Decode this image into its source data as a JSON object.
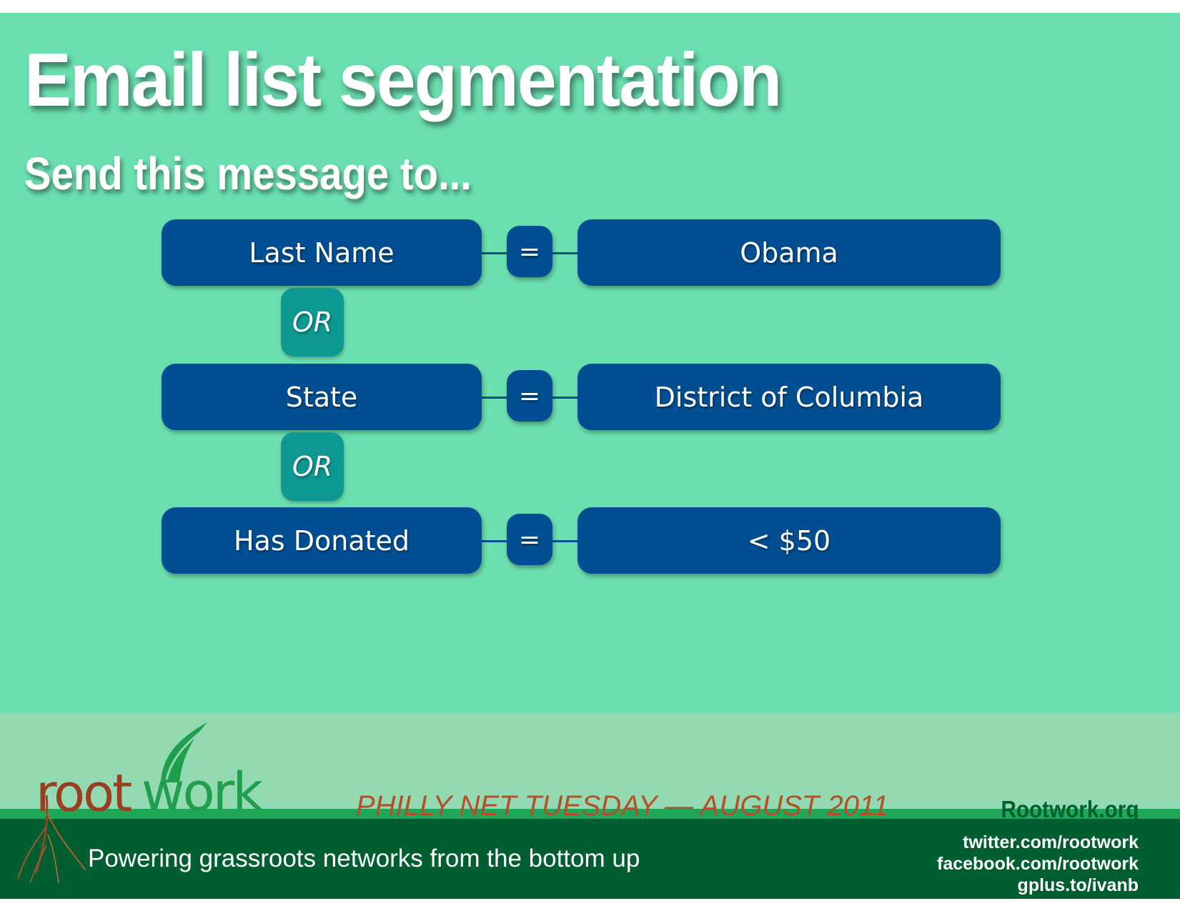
{
  "slide": {
    "title": "Email list segmentation",
    "subtitle": "Send this message to..."
  },
  "rules": [
    {
      "field": "Last Name",
      "operator": "=",
      "value": "Obama"
    },
    {
      "field": "State",
      "operator": "=",
      "value": "District of Columbia"
    },
    {
      "field": "Has Donated",
      "operator": "=",
      "value": "< $50"
    }
  ],
  "connectors": [
    "OR",
    "OR"
  ],
  "footer": {
    "logo_left": "root",
    "logo_right": "work",
    "event": "PHILLY NET TUESDAY — AUGUST 2011",
    "site": "Rootwork.org",
    "tagline": "Powering grassroots networks from the bottom up",
    "social": [
      "twitter.com/rootwork",
      "facebook.com/rootwork",
      "gplus.to/ivanb"
    ]
  },
  "colors": {
    "background": "#6bdfaf",
    "box": "#014f92",
    "or_box": "#0d9892",
    "footer_dark": "#005e31",
    "logo_root": "#9a3e22",
    "logo_work": "#1f9e4e"
  }
}
